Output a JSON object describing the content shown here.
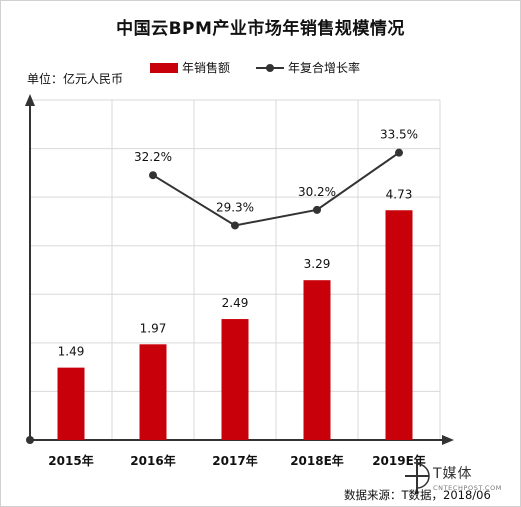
{
  "page": {
    "title": "中国云BPM产业市场年销售规模情况",
    "unit_label": "单位：亿元人民币",
    "source": "数据来源：T数据，2018/06",
    "watermark": {
      "text": "T媒体",
      "url": "CNTECHPOST.COM"
    }
  },
  "colors": {
    "bar": "#c8000a",
    "line": "#333333",
    "grid": "#d9d9d9",
    "axis": "#333333"
  },
  "chart_data": {
    "type": "bar",
    "title": "中国云BPM产业市场年销售规模情况",
    "ylabel": "单位：亿元人民币",
    "categories": [
      "2015年",
      "2016年",
      "2017年",
      "2018E年",
      "2019E年"
    ],
    "series": [
      {
        "name": "年销售额",
        "type": "bar",
        "values": [
          1.49,
          1.97,
          2.49,
          3.29,
          4.73
        ],
        "labels": [
          "1.49",
          "1.97",
          "2.49",
          "3.29",
          "4.73"
        ]
      },
      {
        "name": "年复合增长率",
        "type": "line",
        "values": [
          null,
          32.2,
          29.3,
          30.2,
          33.5
        ],
        "labels": [
          "",
          "32.2%",
          "29.3%",
          "30.2%",
          "33.5%"
        ]
      }
    ],
    "ylim": [
      0,
      7
    ],
    "legend": "top",
    "grid": true
  }
}
